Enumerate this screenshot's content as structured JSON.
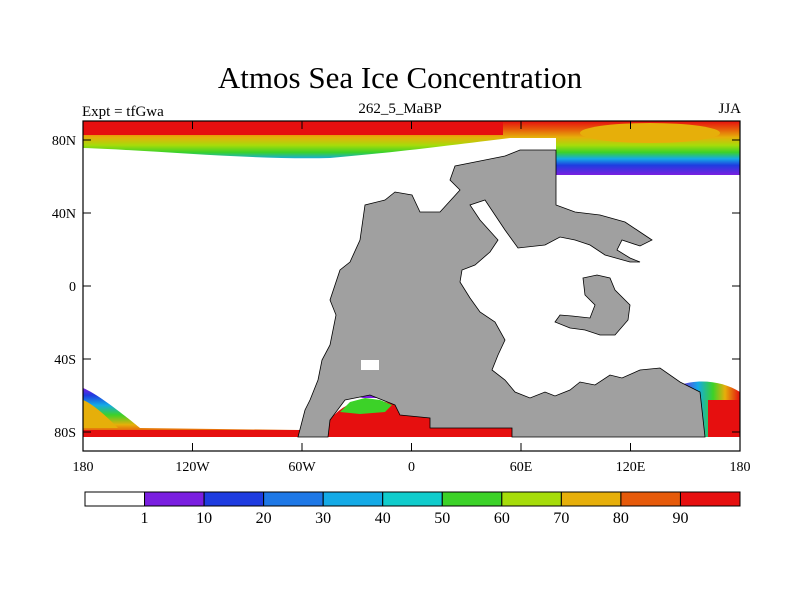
{
  "header": {
    "title": "Atmos Sea Ice Concentration",
    "left_label": "Expt = tfGwa",
    "center_label": "262_5_MaBP",
    "right_label": "JJA"
  },
  "map": {
    "lat_ticks": [
      "80N",
      "40N",
      "0",
      "40S",
      "80S"
    ],
    "lon_ticks": [
      "180",
      "120W",
      "60W",
      "0",
      "60E",
      "120E",
      "180"
    ],
    "land_color": "#a0a0a0"
  },
  "colorbar": {
    "colors": [
      "#ffffff",
      "#7a1fe0",
      "#1e3ce0",
      "#1e78e6",
      "#14aae6",
      "#10cccc",
      "#3cd228",
      "#a6dc0a",
      "#e6af0a",
      "#e65a0a",
      "#e60f0f"
    ],
    "labels": [
      "1",
      "10",
      "20",
      "30",
      "40",
      "50",
      "60",
      "70",
      "80",
      "90"
    ]
  }
}
